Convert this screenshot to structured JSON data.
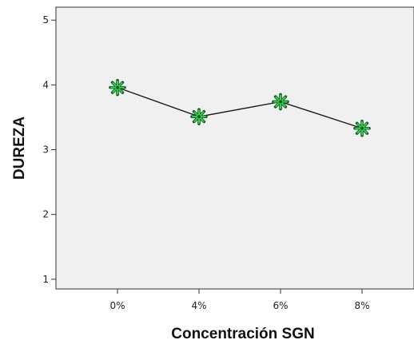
{
  "chart_data": {
    "type": "line",
    "categories": [
      "0%",
      "4%",
      "6%",
      "8%"
    ],
    "values": [
      3.96,
      3.51,
      3.74,
      3.33
    ],
    "xlabel": "Concentración SGN",
    "ylabel": "DUREZA",
    "ylim": [
      0.85,
      5.2
    ],
    "yticks": [
      1,
      2,
      3,
      4,
      5
    ],
    "grid": false,
    "colors": {
      "plot_background": "#f0f0f0",
      "axes": "#333333",
      "line": "#1a1a1a",
      "marker_fill": "#3ec95a",
      "marker_stroke": "#0b5a1c"
    },
    "marker": "asterisk"
  }
}
